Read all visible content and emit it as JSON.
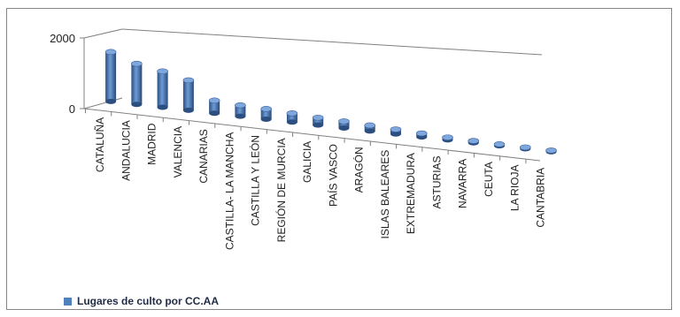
{
  "chart_data": {
    "type": "bar",
    "categories": [
      "CATALUÑA",
      "ANDALUCIA",
      "MADRID",
      "VALENCIA",
      "CANARIAS",
      "CASTILLA- LA MANCHA",
      "CASTILLA Y LEÓN",
      "REGIÓN DE MURCIA",
      "GALICIA",
      "PAÍS VASCO",
      "ARAGÓN",
      "ISLAS BALEARES",
      "EXTREMADURA",
      "ASTURIAS",
      "NAVARRA",
      "CEUTA",
      "LA RIOJA",
      "CANTABRIA"
    ],
    "series": [
      {
        "name": "Lugares de culto por CC.AA",
        "values": [
          1400,
          1150,
          1020,
          850,
          360,
          310,
          290,
          250,
          210,
          190,
          160,
          130,
          100,
          70,
          55,
          45,
          40,
          35
        ],
        "color": "#4f81bd"
      }
    ],
    "yticks": [
      0,
      2000
    ],
    "ylim": [
      0,
      2000
    ],
    "legend_position": "bottom-left",
    "grid": false
  }
}
